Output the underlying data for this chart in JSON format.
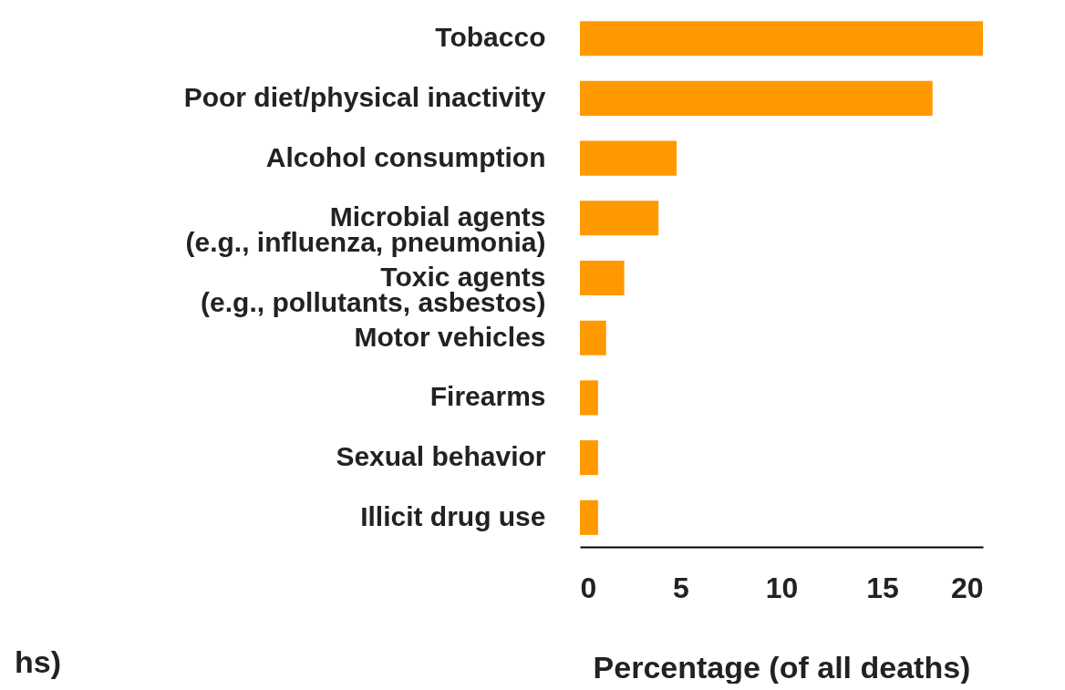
{
  "chart_data": {
    "type": "bar",
    "orientation": "horizontal",
    "xlabel": "Percentage (of all deaths)",
    "categories": [
      "Tobacco",
      "Poor diet/physical inactivity",
      "Alcohol consumption",
      "Microbial agents\n(e.g., influenza, pneumonia)",
      "Toxic agents\n(e.g., pollutants, asbestos)",
      "Motor vehicles",
      "Firearms",
      "Sexual behavior",
      "Illicit drug use"
    ],
    "values": [
      20,
      17.5,
      4.8,
      3.9,
      2.2,
      1.3,
      0.9,
      0.9,
      0.9
    ],
    "color": "#ff9900",
    "xlim": [
      0,
      20
    ],
    "xticks": [
      0,
      5,
      10,
      15,
      20
    ],
    "grid": false,
    "annotations": [
      "hs)"
    ]
  }
}
